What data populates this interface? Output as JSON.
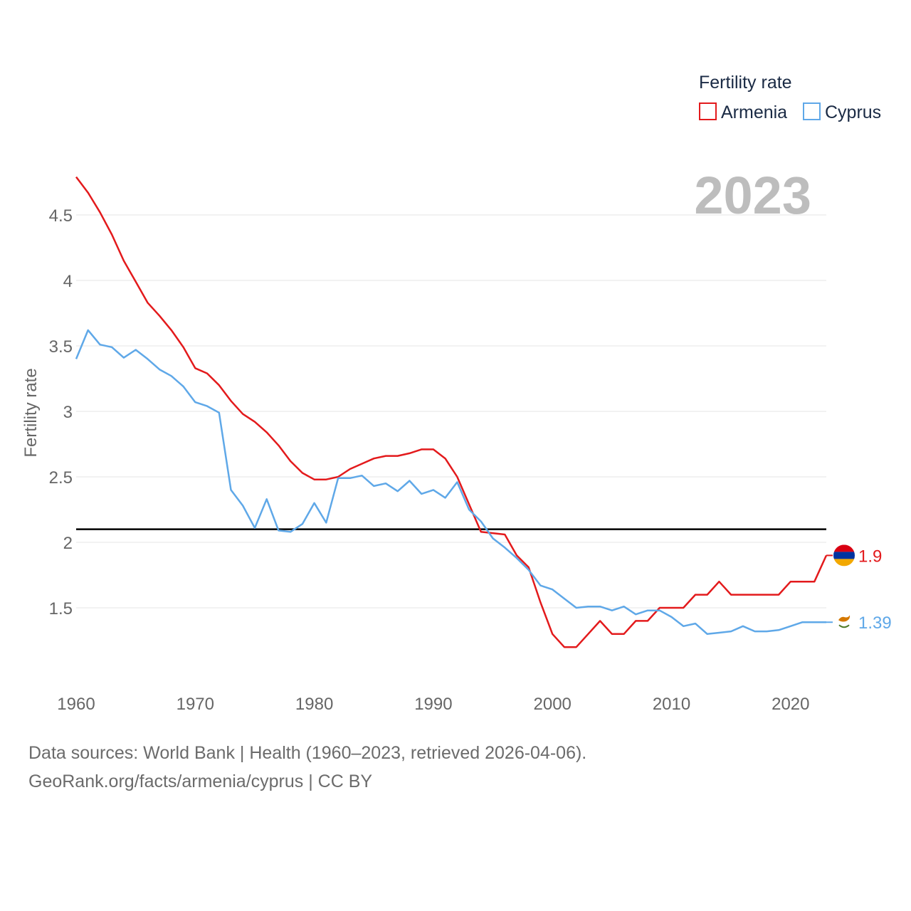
{
  "chart_data": {
    "type": "line",
    "title": "",
    "xlabel": "",
    "ylabel": "Fertility rate",
    "xlim": [
      1960,
      2023
    ],
    "ylim": [
      1.0,
      4.8
    ],
    "y_ticks": [
      1.5,
      2,
      2.5,
      3,
      3.5,
      4,
      4.5
    ],
    "y_tick_labels": [
      "1.5",
      "2",
      "2.5",
      "3",
      "3.5",
      "4",
      "4.5"
    ],
    "x_ticks": [
      1960,
      1970,
      1980,
      1990,
      2000,
      2010,
      2020
    ],
    "x_tick_labels": [
      "1960",
      "1970",
      "1980",
      "1990",
      "2000",
      "2010",
      "2020"
    ],
    "reference_line": 2.1,
    "year_label": "2023",
    "legend": {
      "title": "Fertility rate",
      "position": "top-right"
    },
    "series": [
      {
        "name": "Armenia",
        "color": "#e31a1c",
        "end_label": "1.9",
        "flag_icon": "armenia-flag-icon",
        "x": [
          1960,
          1961,
          1962,
          1963,
          1964,
          1965,
          1966,
          1967,
          1968,
          1969,
          1970,
          1971,
          1972,
          1973,
          1974,
          1975,
          1976,
          1977,
          1978,
          1979,
          1980,
          1981,
          1982,
          1983,
          1984,
          1985,
          1986,
          1987,
          1988,
          1989,
          1990,
          1991,
          1992,
          1993,
          1994,
          1995,
          1996,
          1997,
          1998,
          1999,
          2000,
          2001,
          2002,
          2003,
          2004,
          2005,
          2006,
          2007,
          2008,
          2009,
          2010,
          2011,
          2012,
          2013,
          2014,
          2015,
          2016,
          2017,
          2018,
          2019,
          2020,
          2021,
          2022,
          2023
        ],
        "values": [
          4.79,
          4.67,
          4.52,
          4.35,
          4.15,
          3.99,
          3.83,
          3.73,
          3.62,
          3.49,
          3.33,
          3.29,
          3.2,
          3.08,
          2.98,
          2.92,
          2.84,
          2.74,
          2.62,
          2.53,
          2.48,
          2.48,
          2.5,
          2.56,
          2.6,
          2.64,
          2.66,
          2.66,
          2.68,
          2.71,
          2.71,
          2.64,
          2.5,
          2.29,
          2.08,
          2.07,
          2.06,
          1.9,
          1.81,
          1.54,
          1.3,
          1.2,
          1.2,
          1.3,
          1.4,
          1.3,
          1.3,
          1.4,
          1.4,
          1.5,
          1.5,
          1.5,
          1.6,
          1.6,
          1.7,
          1.6,
          1.6,
          1.6,
          1.6,
          1.6,
          1.7,
          1.7,
          1.7,
          1.9
        ]
      },
      {
        "name": "Cyprus",
        "color": "#5fa8e8",
        "end_label": "1.39",
        "flag_icon": "cyprus-flag-icon",
        "x": [
          1960,
          1961,
          1962,
          1963,
          1964,
          1965,
          1966,
          1967,
          1968,
          1969,
          1970,
          1971,
          1972,
          1973,
          1974,
          1975,
          1976,
          1977,
          1978,
          1979,
          1980,
          1981,
          1982,
          1983,
          1984,
          1985,
          1986,
          1987,
          1988,
          1989,
          1990,
          1991,
          1992,
          1993,
          1994,
          1995,
          1996,
          1997,
          1998,
          1999,
          2000,
          2001,
          2002,
          2003,
          2004,
          2005,
          2006,
          2007,
          2008,
          2009,
          2010,
          2011,
          2012,
          2013,
          2014,
          2015,
          2016,
          2017,
          2018,
          2019,
          2020,
          2021,
          2022,
          2023
        ],
        "values": [
          3.4,
          3.62,
          3.51,
          3.49,
          3.41,
          3.47,
          3.4,
          3.32,
          3.27,
          3.19,
          3.07,
          3.04,
          2.99,
          2.4,
          2.28,
          2.11,
          2.33,
          2.09,
          2.08,
          2.14,
          2.3,
          2.15,
          2.49,
          2.49,
          2.51,
          2.43,
          2.45,
          2.39,
          2.47,
          2.37,
          2.4,
          2.34,
          2.46,
          2.25,
          2.16,
          2.03,
          1.96,
          1.88,
          1.79,
          1.67,
          1.64,
          1.57,
          1.5,
          1.51,
          1.51,
          1.48,
          1.51,
          1.45,
          1.48,
          1.48,
          1.43,
          1.36,
          1.38,
          1.3,
          1.31,
          1.32,
          1.36,
          1.32,
          1.32,
          1.33,
          1.36,
          1.39,
          1.39,
          1.39
        ]
      }
    ]
  },
  "footer": {
    "line1": "Data sources: World Bank | Health (1960–2023, retrieved 2026-04-06).",
    "line2": "GeoRank.org/facts/armenia/cyprus | CC BY"
  }
}
